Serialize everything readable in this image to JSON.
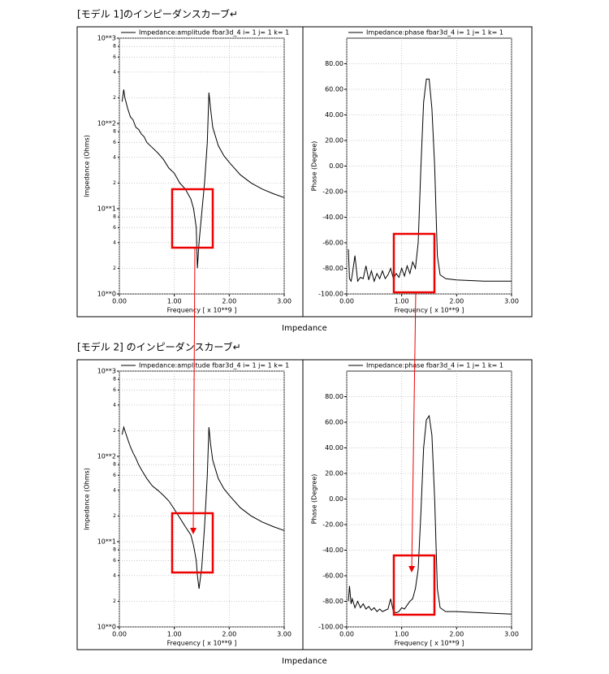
{
  "headings": [
    "[モデル 1]のインピーダンスカーブ↵",
    "[モデル 2]  のインピーダンスカーブ↵"
  ],
  "captions": [
    "Impedance",
    "Impedance"
  ],
  "chart_data": [
    {
      "type": "line",
      "log_scale": true,
      "grid": true,
      "x_label": "Frequency [ x 10**9 ]",
      "y_label": "Impedance (Ohms)",
      "xlim": [
        0,
        3
      ],
      "ylim": [
        1,
        1000
      ],
      "xticks": [
        {
          "value": 0,
          "label": "0.00"
        },
        {
          "value": 1,
          "label": "1.00"
        },
        {
          "value": 2,
          "label": "2.00"
        },
        {
          "value": 3,
          "label": "3.00"
        }
      ],
      "yticks": [
        {
          "value": 1,
          "label": "10**0"
        },
        2,
        4,
        6,
        8,
        {
          "value": 10,
          "label": "10**1"
        },
        {
          "value": 20,
          "label": "2"
        },
        {
          "value": 40,
          "label": "4"
        },
        {
          "value": 60,
          "label": "6"
        },
        {
          "value": 80,
          "label": "8"
        },
        {
          "value": 100,
          "label": "10**2"
        },
        {
          "value": 200,
          "label": "2"
        },
        {
          "value": 400,
          "label": "4"
        },
        {
          "value": 600,
          "label": "6"
        },
        {
          "value": 800,
          "label": "8"
        },
        {
          "value": 1000,
          "label": "10**3"
        }
      ],
      "x": [
        0.05,
        0.08,
        0.1,
        0.15,
        0.2,
        0.25,
        0.3,
        0.35,
        0.4,
        0.45,
        0.5,
        0.6,
        0.7,
        0.8,
        0.9,
        1.0,
        1.1,
        1.2,
        1.3,
        1.35,
        1.4,
        1.42,
        1.45,
        1.5,
        1.55,
        1.6,
        1.63,
        1.66,
        1.7,
        1.8,
        1.9,
        2.0,
        2.2,
        2.4,
        2.6,
        2.8,
        3.0
      ],
      "series": [
        {
          "name": "Impedance:amplitude fbar3d_4 i= 1 j= 1 k= 1",
          "color": "#000000",
          "values": [
            180,
            250,
            200,
            150,
            120,
            110,
            90,
            85,
            75,
            70,
            60,
            52,
            45,
            38,
            30,
            26,
            20,
            17,
            13,
            10,
            6,
            2,
            4,
            9,
            20,
            60,
            230,
            150,
            90,
            55,
            42,
            35,
            25,
            20,
            17,
            15,
            13.5
          ]
        }
      ]
    },
    {
      "type": "line",
      "log_scale": false,
      "grid": true,
      "x_label": "Frequency [ x 10**9 ]",
      "y_label": "Phase (Degree)",
      "xlim": [
        0,
        3
      ],
      "ylim": [
        -100,
        100
      ],
      "xticks": [
        {
          "value": 0,
          "label": "0.00"
        },
        {
          "value": 1,
          "label": "1.00"
        },
        {
          "value": 2,
          "label": "2.00"
        },
        {
          "value": 3,
          "label": "3.00"
        }
      ],
      "yticks": [
        {
          "value": 80,
          "label": "80.00"
        },
        {
          "value": 60,
          "label": "60.00"
        },
        {
          "value": 40,
          "label": "40.00"
        },
        {
          "value": 20,
          "label": "20.00"
        },
        {
          "value": 0,
          "label": "0.00"
        },
        {
          "value": -20,
          "label": "-20.00"
        },
        {
          "value": -40,
          "label": "-40.00"
        },
        {
          "value": -60,
          "label": "-60.00"
        },
        {
          "value": -80,
          "label": "-80.00"
        },
        {
          "value": -100,
          "label": "-100.00"
        }
      ],
      "x": [
        0.03,
        0.05,
        0.08,
        0.1,
        0.15,
        0.2,
        0.25,
        0.3,
        0.35,
        0.4,
        0.45,
        0.5,
        0.55,
        0.6,
        0.65,
        0.7,
        0.75,
        0.8,
        0.85,
        0.9,
        0.95,
        1.0,
        1.05,
        1.1,
        1.15,
        1.2,
        1.25,
        1.3,
        1.35,
        1.4,
        1.45,
        1.5,
        1.55,
        1.6,
        1.65,
        1.7,
        1.8,
        2.0,
        2.5,
        3.0
      ],
      "series": [
        {
          "name": "Impedance:phase fbar3d_4 i= 1 j= 1 k= 1",
          "color": "#000000",
          "values": [
            -65,
            -88,
            -90,
            -85,
            -70,
            -90,
            -87,
            -88,
            -78,
            -89,
            -82,
            -90,
            -84,
            -88,
            -82,
            -88,
            -85,
            -80,
            -88,
            -84,
            -87,
            -80,
            -86,
            -78,
            -84,
            -75,
            -80,
            -60,
            0,
            50,
            68,
            68,
            45,
            0,
            -70,
            -85,
            -88,
            -89,
            -90,
            -90
          ]
        }
      ]
    },
    {
      "type": "line",
      "log_scale": true,
      "grid": true,
      "x_label": "Frequency [ x 10**9 ]",
      "y_label": "Impedance (Ohms)",
      "xlim": [
        0,
        3
      ],
      "ylim": [
        1,
        1000
      ],
      "xticks": [
        {
          "value": 0,
          "label": "0.00"
        },
        {
          "value": 1,
          "label": "1.00"
        },
        {
          "value": 2,
          "label": "2.00"
        },
        {
          "value": 3,
          "label": "3.00"
        }
      ],
      "yticks": [
        {
          "value": 1,
          "label": "10**0"
        },
        2,
        4,
        6,
        8,
        {
          "value": 10,
          "label": "10**1"
        },
        {
          "value": 20,
          "label": "2"
        },
        {
          "value": 40,
          "label": "4"
        },
        {
          "value": 60,
          "label": "6"
        },
        {
          "value": 80,
          "label": "8"
        },
        {
          "value": 100,
          "label": "10**2"
        },
        {
          "value": 200,
          "label": "2"
        },
        {
          "value": 400,
          "label": "4"
        },
        {
          "value": 600,
          "label": "6"
        },
        {
          "value": 800,
          "label": "8"
        },
        {
          "value": 1000,
          "label": "10**3"
        }
      ],
      "x": [
        0.05,
        0.08,
        0.1,
        0.15,
        0.2,
        0.25,
        0.3,
        0.35,
        0.4,
        0.45,
        0.5,
        0.6,
        0.7,
        0.8,
        0.9,
        1.0,
        1.1,
        1.2,
        1.3,
        1.35,
        1.4,
        1.42,
        1.45,
        1.5,
        1.55,
        1.6,
        1.63,
        1.66,
        1.7,
        1.8,
        1.9,
        2.0,
        2.2,
        2.4,
        2.6,
        2.8,
        3.0
      ],
      "series": [
        {
          "name": "Impedance:amplitude fbar3d_4 i= 1 j= 1 k= 1",
          "color": "#000000",
          "values": [
            180,
            220,
            200,
            160,
            130,
            110,
            95,
            80,
            70,
            62,
            55,
            45,
            40,
            35,
            30,
            24,
            19,
            15,
            12,
            9,
            6,
            4,
            2.8,
            5,
            15,
            60,
            220,
            140,
            90,
            55,
            42,
            35,
            25,
            20,
            17,
            15,
            13.5
          ]
        }
      ]
    },
    {
      "type": "line",
      "log_scale": false,
      "grid": true,
      "x_label": "Frequency [ x 10**9 ]",
      "y_label": "Phase (Degree)",
      "xlim": [
        0,
        3
      ],
      "ylim": [
        -100,
        100
      ],
      "xticks": [
        {
          "value": 0,
          "label": "0.00"
        },
        {
          "value": 1,
          "label": "1.00"
        },
        {
          "value": 2,
          "label": "2.00"
        },
        {
          "value": 3,
          "label": "3.00"
        }
      ],
      "yticks": [
        {
          "value": 80,
          "label": "80.00"
        },
        {
          "value": 60,
          "label": "60.00"
        },
        {
          "value": 40,
          "label": "40.00"
        },
        {
          "value": 20,
          "label": "20.00"
        },
        {
          "value": 0,
          "label": "0.00"
        },
        {
          "value": -20,
          "label": "-20.00"
        },
        {
          "value": -40,
          "label": "-40.00"
        },
        {
          "value": -60,
          "label": "-60.00"
        },
        {
          "value": -80,
          "label": "-80.00"
        },
        {
          "value": -100,
          "label": "-100.00"
        }
      ],
      "x": [
        0.03,
        0.05,
        0.08,
        0.1,
        0.15,
        0.2,
        0.25,
        0.3,
        0.35,
        0.4,
        0.45,
        0.5,
        0.55,
        0.6,
        0.65,
        0.7,
        0.75,
        0.8,
        0.85,
        0.9,
        0.95,
        1.0,
        1.05,
        1.1,
        1.15,
        1.2,
        1.25,
        1.3,
        1.35,
        1.4,
        1.45,
        1.5,
        1.55,
        1.6,
        1.65,
        1.7,
        1.8,
        2.0,
        2.5,
        3.0
      ],
      "series": [
        {
          "name": "Impedance:phase fbar3d_4 i= 1 j= 1 k= 1",
          "color": "#000000",
          "values": [
            -80,
            -68,
            -82,
            -78,
            -85,
            -80,
            -85,
            -82,
            -86,
            -84,
            -87,
            -85,
            -88,
            -86,
            -88,
            -87,
            -86,
            -78,
            -88,
            -89,
            -88,
            -85,
            -86,
            -83,
            -80,
            -78,
            -70,
            -55,
            -10,
            40,
            62,
            65,
            50,
            0,
            -70,
            -85,
            -88,
            -88,
            -89,
            -90
          ]
        }
      ]
    }
  ]
}
